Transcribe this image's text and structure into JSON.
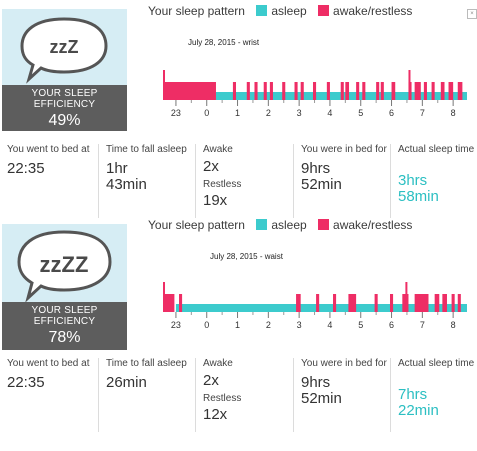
{
  "colors": {
    "asleep": "#3ccbcd",
    "awake": "#ee2d65",
    "teal_text": "#2cbfc2"
  },
  "panels": [
    {
      "efficiency_label": "YOUR SLEEP EFFICIENCY",
      "efficiency_value": "49%",
      "bubble_text": "zzZ",
      "legend": {
        "title": "Your sleep pattern",
        "asleep": "asleep",
        "awake": "awake/restless"
      },
      "chart_title": "July 28, 2015 - wrist",
      "stats": {
        "bed_label": "You went to bed at",
        "bed_value": "22:35",
        "fall_label": "Time to fall asleep",
        "fall_value_1": "1hr",
        "fall_value_2": "43min",
        "awake_label": "Awake",
        "awake_value": "2x",
        "restless_label": "Restless",
        "restless_value": "19x",
        "inbed_label": "You were in bed for",
        "inbed_value_1": "9hrs",
        "inbed_value_2": "52min",
        "actual_label": "Actual sleep time",
        "actual_value_1": "3hrs",
        "actual_value_2": "58min"
      }
    },
    {
      "efficiency_label": "YOUR SLEEP EFFICIENCY",
      "efficiency_value": "78%",
      "bubble_text": "zzZZ",
      "legend": {
        "title": "Your sleep pattern",
        "asleep": "asleep",
        "awake": "awake/restless"
      },
      "chart_title": "July 28, 2015 - waist",
      "stats": {
        "bed_label": "You went to bed at",
        "bed_value": "22:35",
        "fall_label": "Time to fall asleep",
        "fall_value_1": "26min",
        "fall_value_2": "",
        "awake_label": "Awake",
        "awake_value": "2x",
        "restless_label": "Restless",
        "restless_value": "12x",
        "inbed_label": "You were in bed for",
        "inbed_value_1": "9hrs",
        "inbed_value_2": "52min",
        "actual_label": "Actual sleep time",
        "actual_value_1": "7hrs",
        "actual_value_2": "22min"
      }
    }
  ],
  "chart_data": [
    {
      "type": "timeline",
      "title": "July 28, 2015 - wrist",
      "x_ticks": [
        "23",
        "0",
        "1",
        "2",
        "3",
        "4",
        "5",
        "6",
        "7",
        "8"
      ],
      "x_range_hours": [
        22.58,
        32.45
      ],
      "asleep_bar": [
        24.3,
        32.45
      ],
      "awake_segments": [
        [
          22.58,
          24.3
        ],
        [
          24.85,
          24.95
        ],
        [
          25.3,
          25.4
        ],
        [
          25.55,
          25.65
        ],
        [
          25.85,
          25.95
        ],
        [
          26.05,
          26.15
        ],
        [
          26.45,
          26.55
        ],
        [
          26.85,
          26.95
        ],
        [
          27.05,
          27.15
        ],
        [
          27.45,
          27.55
        ],
        [
          27.9,
          28.0
        ],
        [
          28.35,
          28.45
        ],
        [
          28.5,
          28.62
        ],
        [
          28.85,
          28.95
        ],
        [
          29.05,
          29.15
        ],
        [
          29.5,
          29.6
        ],
        [
          29.65,
          29.75
        ],
        [
          30.0,
          30.12
        ],
        [
          30.55,
          30.65
        ],
        [
          30.75,
          30.95
        ],
        [
          31.05,
          31.15
        ],
        [
          31.3,
          31.4
        ],
        [
          31.6,
          31.72
        ],
        [
          31.85,
          32.0
        ],
        [
          32.15,
          32.3
        ]
      ],
      "tall_markers": [
        22.58,
        30.55
      ]
    },
    {
      "type": "timeline",
      "title": "July 28, 2015 - waist",
      "x_ticks": [
        "23",
        "0",
        "1",
        "2",
        "3",
        "4",
        "5",
        "6",
        "7",
        "8"
      ],
      "x_range_hours": [
        22.58,
        32.45
      ],
      "asleep_bar": [
        23.0,
        32.45
      ],
      "awake_segments": [
        [
          22.58,
          22.95
        ],
        [
          23.1,
          23.2
        ],
        [
          26.9,
          27.05
        ],
        [
          27.55,
          27.65
        ],
        [
          28.1,
          28.2
        ],
        [
          28.6,
          28.85
        ],
        [
          29.45,
          29.55
        ],
        [
          29.95,
          30.05
        ],
        [
          30.35,
          30.55
        ],
        [
          30.75,
          31.2
        ],
        [
          31.4,
          31.55
        ],
        [
          31.65,
          31.8
        ],
        [
          31.95,
          32.05
        ],
        [
          32.15,
          32.25
        ]
      ],
      "tall_markers": [
        22.58,
        30.45
      ]
    }
  ]
}
